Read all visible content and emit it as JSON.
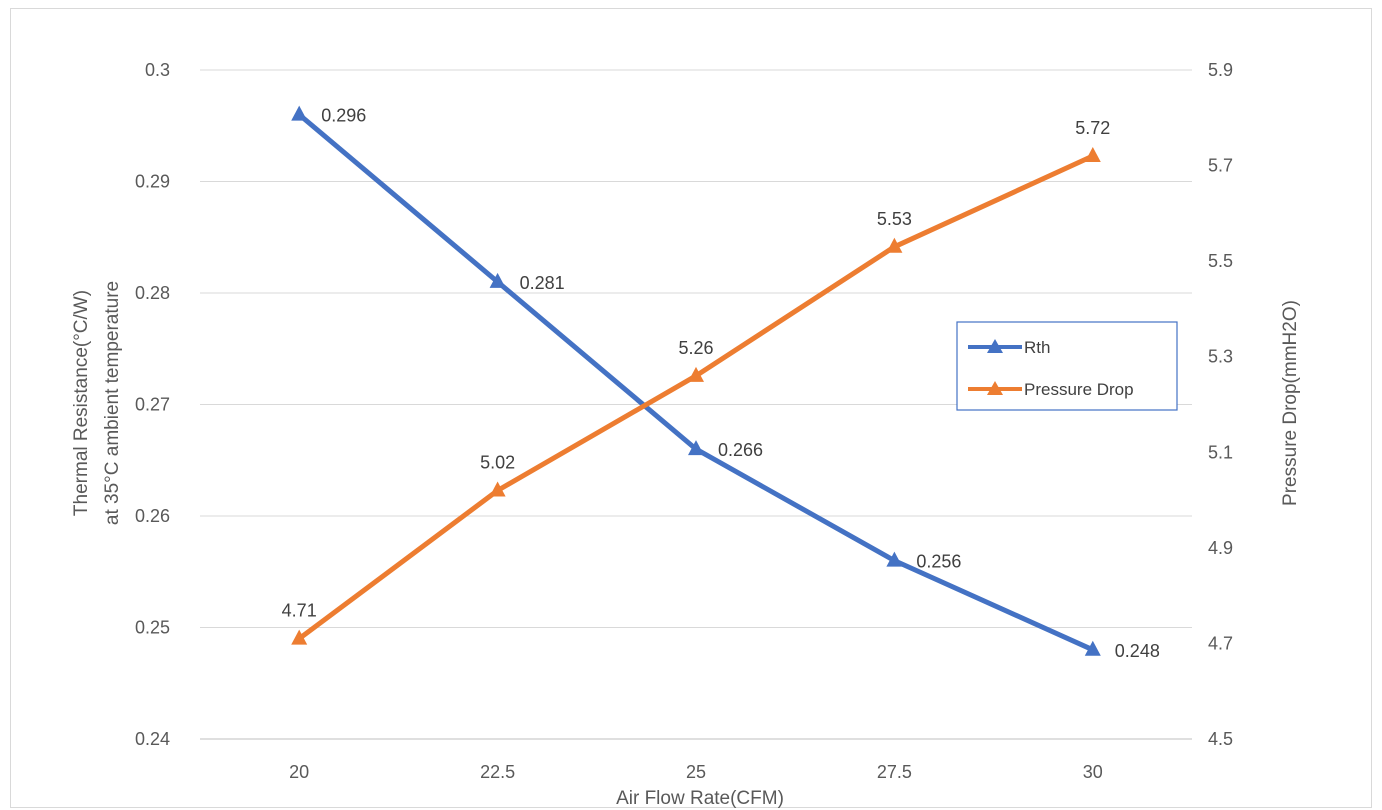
{
  "chart_data": {
    "type": "line",
    "title": "",
    "x": [
      20,
      22.5,
      25,
      27.5,
      30
    ],
    "x_tick_labels": [
      "20",
      "22.5",
      "25",
      "27.5",
      "30"
    ],
    "xlabel": "Air Flow Rate(CFM)",
    "ylabel_left_lines": [
      "Thermal Resistance(°C/W)",
      "at 35°C ambient temperature"
    ],
    "ylabel_right": "Pressure Drop(mmH2O)",
    "ylim_left": [
      0.24,
      0.3
    ],
    "ylim_right": [
      4.5,
      5.9
    ],
    "y_left_ticks": [
      "0.24",
      "0.25",
      "0.26",
      "0.27",
      "0.28",
      "0.29",
      "0.3"
    ],
    "y_right_ticks": [
      "4.5",
      "4.7",
      "4.9",
      "5.1",
      "5.3",
      "5.5",
      "5.7",
      "5.9"
    ],
    "grid": true,
    "legend_position": "right",
    "series": [
      {
        "name": "Rth",
        "axis": "left",
        "color": "#4472c4",
        "marker": "triangle",
        "values": [
          0.296,
          0.281,
          0.266,
          0.256,
          0.248
        ],
        "labels": [
          "0.296",
          "0.281",
          "0.266",
          "0.256",
          "0.248"
        ]
      },
      {
        "name": "Pressure Drop",
        "axis": "right",
        "color": "#ed7d31",
        "marker": "triangle",
        "values": [
          4.71,
          5.02,
          5.26,
          5.53,
          5.72
        ],
        "labels": [
          "4.71",
          "5.02",
          "5.26",
          "5.53",
          "5.72"
        ]
      }
    ]
  }
}
